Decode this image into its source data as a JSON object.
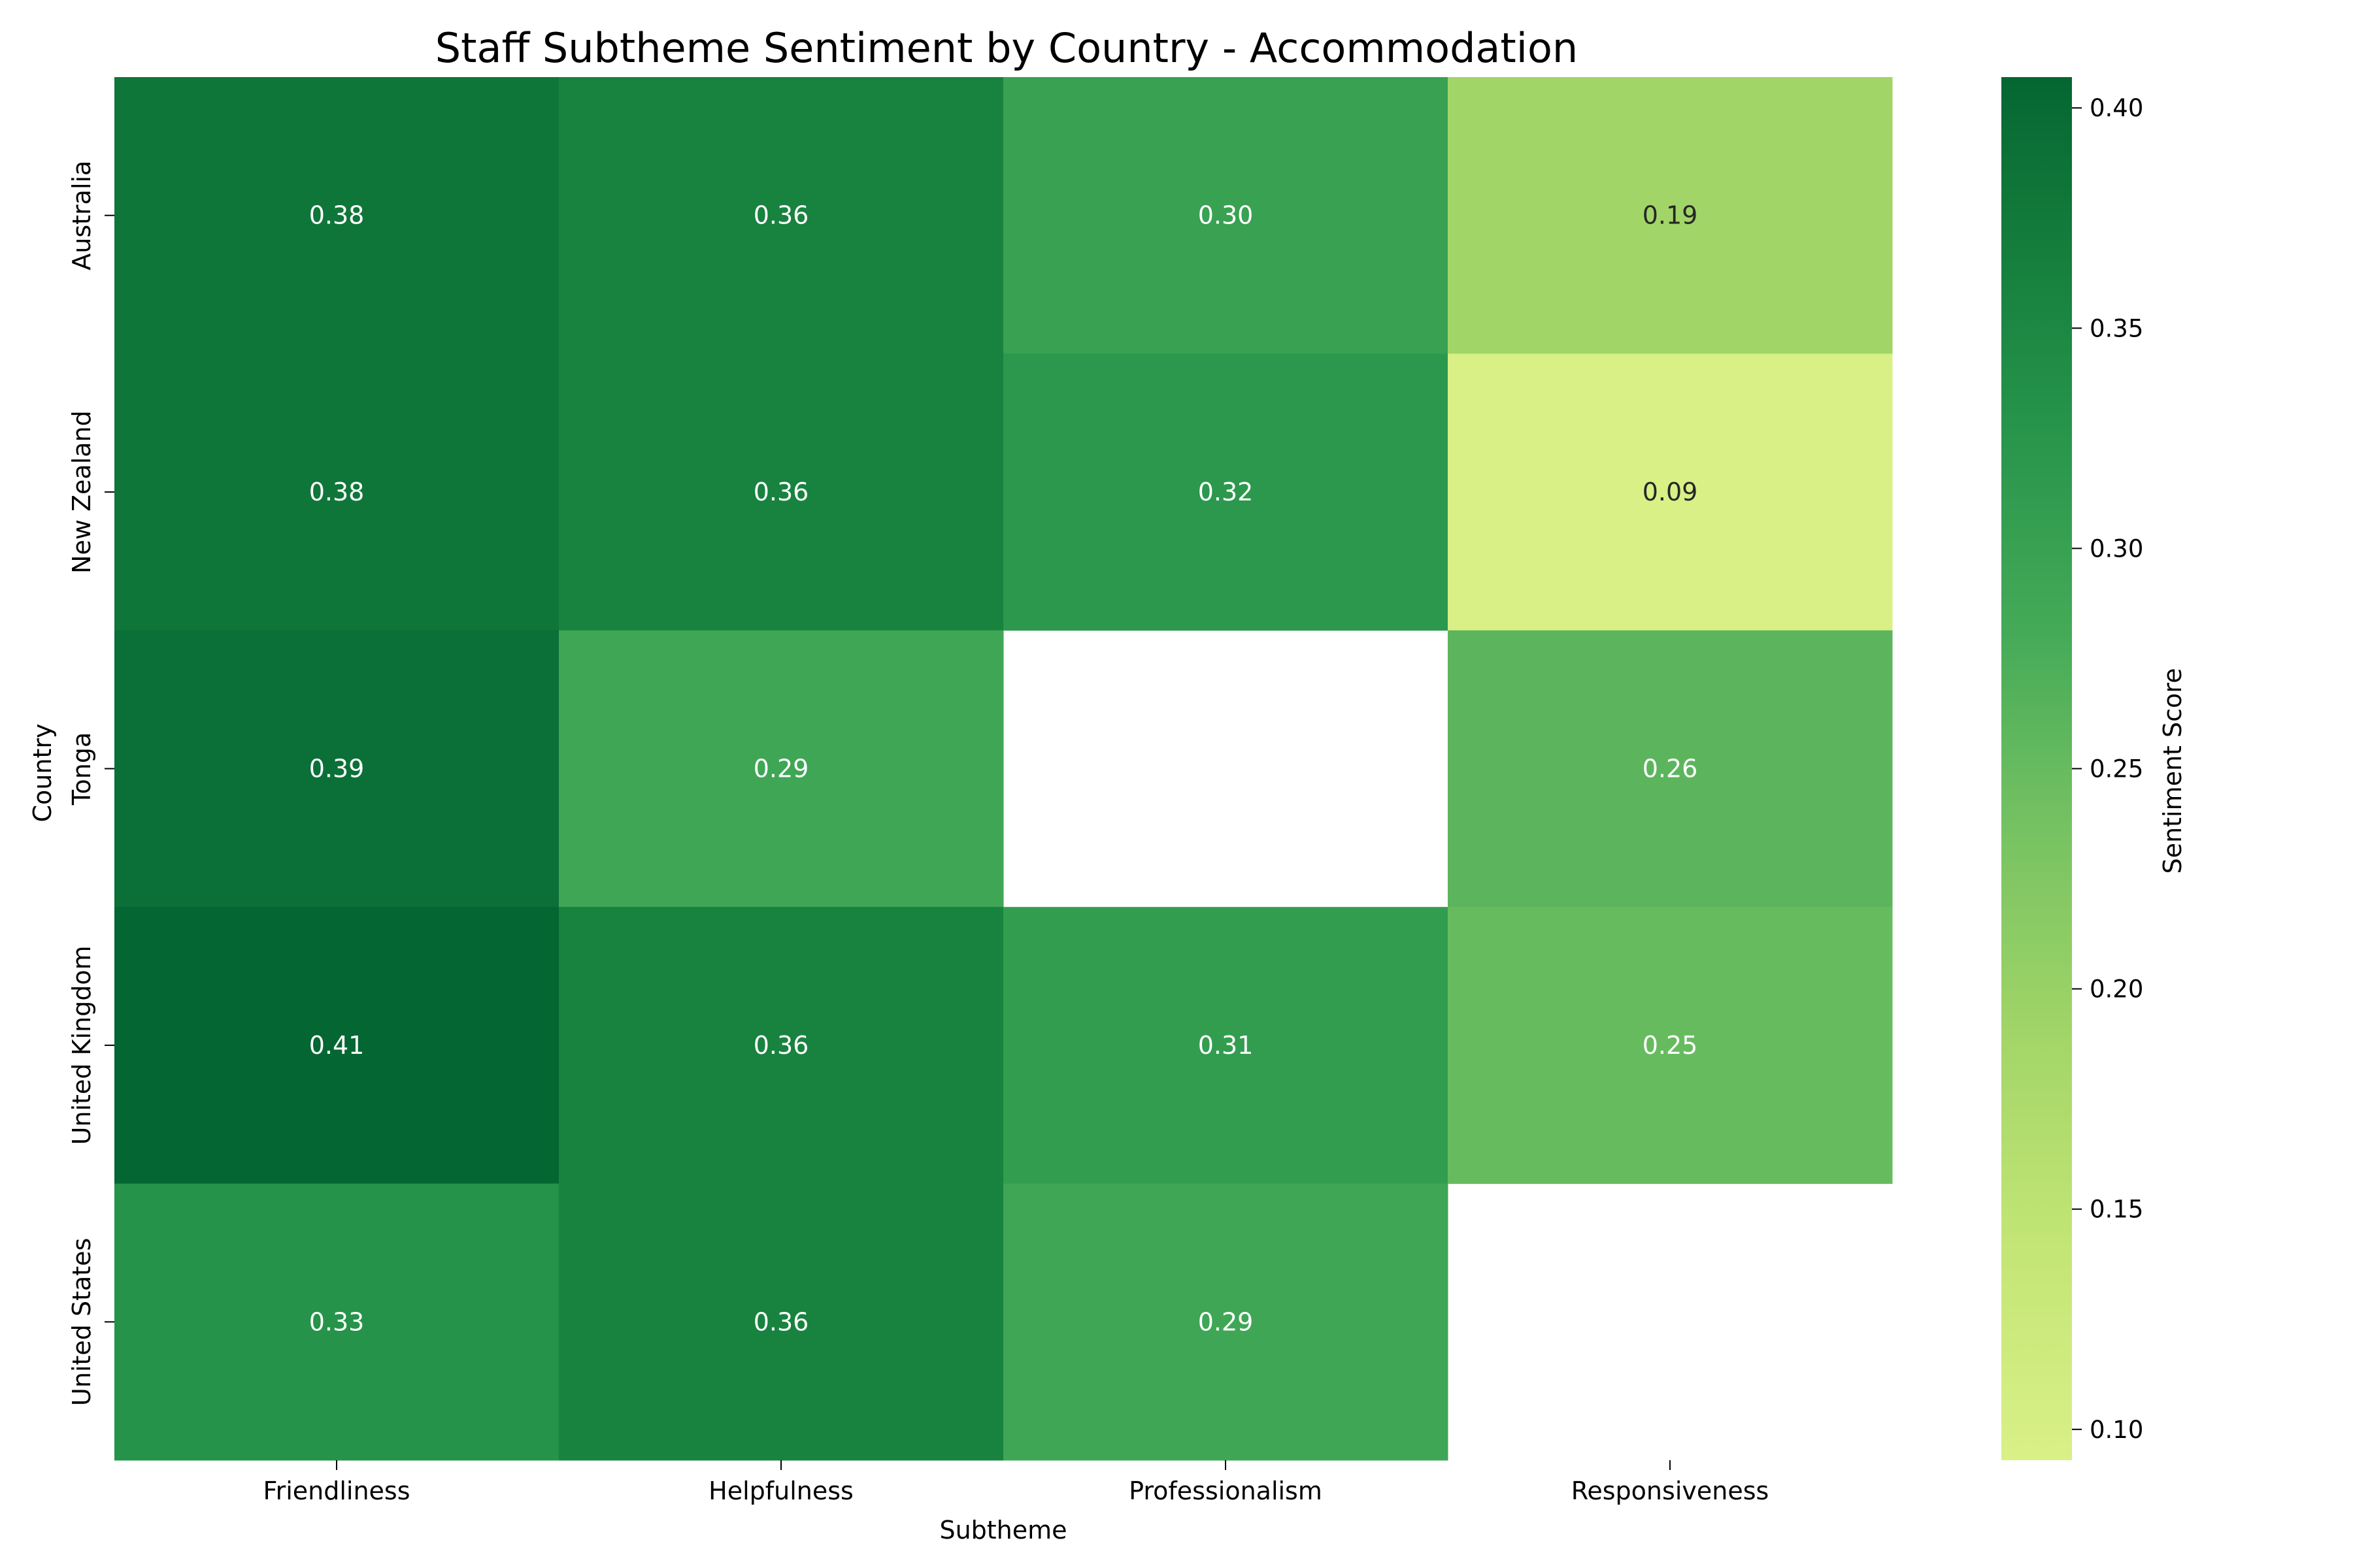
{
  "chart_data": {
    "type": "heatmap",
    "title": "Staff Subtheme Sentiment by Country - Accommodation",
    "xlabel": "Subtheme",
    "ylabel": "Country",
    "x_categories": [
      "Friendliness",
      "Helpfulness",
      "Professionalism",
      "Responsiveness"
    ],
    "y_categories": [
      "Australia",
      "New Zealand",
      "Tonga",
      "United Kingdom",
      "United States"
    ],
    "values": [
      [
        0.38,
        0.36,
        0.3,
        0.19
      ],
      [
        0.38,
        0.36,
        0.32,
        0.09
      ],
      [
        0.39,
        0.29,
        null,
        0.26
      ],
      [
        0.41,
        0.36,
        0.31,
        0.25
      ],
      [
        0.33,
        0.36,
        0.29,
        null
      ]
    ],
    "colorbar": {
      "label": "Sentiment Score",
      "range": [
        0.093,
        0.407
      ],
      "ticks": [
        "0.10",
        "0.15",
        "0.20",
        "0.25",
        "0.30",
        "0.35",
        "0.40"
      ],
      "tick_values": [
        0.1,
        0.15,
        0.2,
        0.25,
        0.3,
        0.35,
        0.4
      ]
    },
    "colormap": "YlGn",
    "grid": false
  }
}
